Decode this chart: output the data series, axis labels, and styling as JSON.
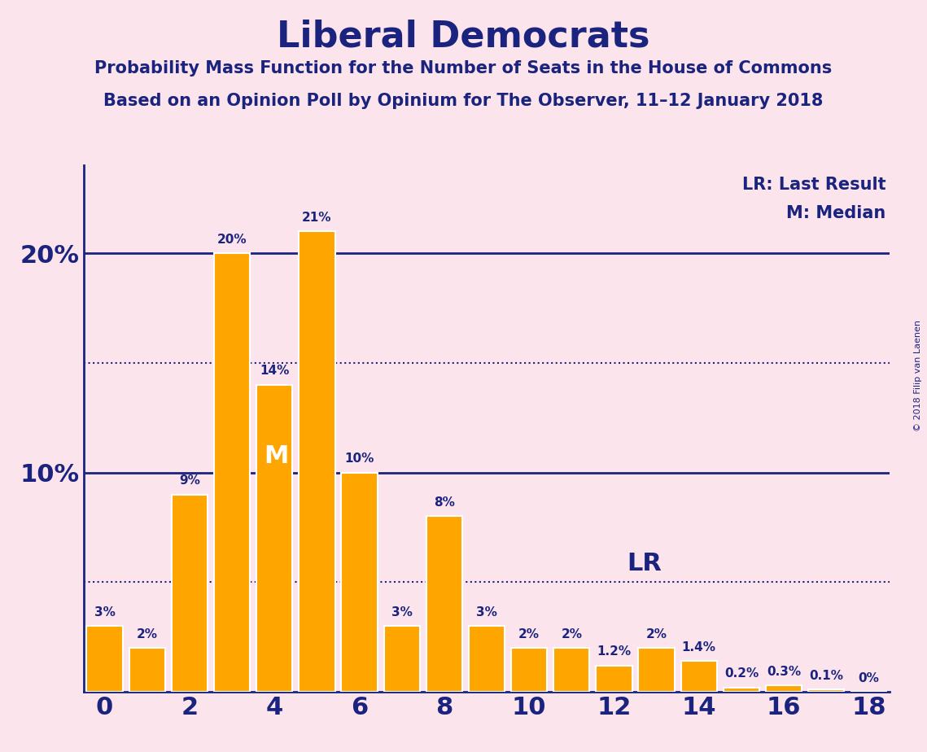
{
  "title": "Liberal Democrats",
  "subtitle1": "Probability Mass Function for the Number of Seats in the House of Commons",
  "subtitle2": "Based on an Opinion Poll by Opinium for The Observer, 11–12 January 2018",
  "copyright": "© 2018 Filip van Laenen",
  "background_color": "#fce4ec",
  "bar_color": "#FFA500",
  "bar_edge_color": "#FFFFFF",
  "axis_color": "#1a237e",
  "text_color": "#1a237e",
  "categories": [
    0,
    1,
    2,
    3,
    4,
    5,
    6,
    7,
    8,
    9,
    10,
    11,
    12,
    13,
    14,
    15,
    16,
    17,
    18
  ],
  "values": [
    3,
    2,
    9,
    20,
    14,
    21,
    10,
    3,
    8,
    3,
    2,
    2,
    1.2,
    2,
    1.4,
    0.2,
    0.3,
    0.1,
    0
  ],
  "value_labels": [
    "3%",
    "2%",
    "9%",
    "20%",
    "14%",
    "21%",
    "10%",
    "3%",
    "8%",
    "3%",
    "2%",
    "2%",
    "1.2%",
    "2%",
    "1.4%",
    "0.2%",
    "0.3%",
    "0.1%",
    "0%"
  ],
  "show_zero_label": [
    false,
    false,
    false,
    false,
    false,
    false,
    false,
    false,
    false,
    false,
    false,
    false,
    false,
    false,
    false,
    false,
    false,
    false,
    true
  ],
  "hline_solid_values": [
    20,
    10
  ],
  "hline_dotted_values": [
    15,
    5
  ],
  "xlim": [
    -0.5,
    18.5
  ],
  "ylim": [
    0,
    24
  ],
  "xticks": [
    0,
    2,
    4,
    6,
    8,
    10,
    12,
    14,
    16,
    18
  ],
  "legend_lr": "LR: Last Result",
  "legend_m": "M: Median",
  "lr_x": 12.3,
  "lr_y": 5.3,
  "m_x": 4.05,
  "m_y": 10.2
}
